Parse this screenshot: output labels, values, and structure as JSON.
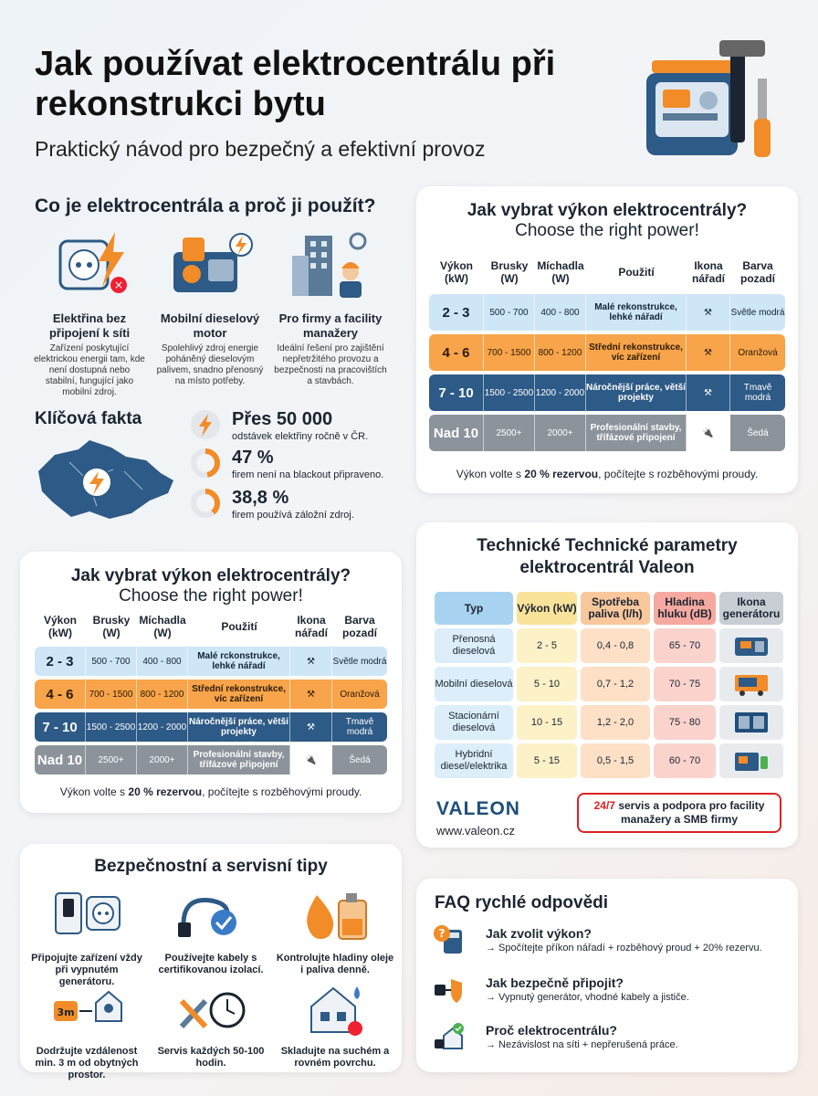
{
  "header": {
    "title": "Jak používat elektrocentrálu při rekonstrukci bytu",
    "subtitle": "Praktický návod pro bezpečný a efektivní provoz"
  },
  "intro": {
    "title": "Co je elektrocentrála a proč ji použít?",
    "features": [
      {
        "title": "Elektřina bez připojení k síti",
        "desc": "Zařízení poskytující elektrickou energii tam, kde není dostupná nebo stabilní, fungující jako mobilní zdroj.",
        "icon": "socket-lightning-icon"
      },
      {
        "title": "Mobilní dieselový motor",
        "desc": "Spolehlivý zdroj energie poháněný dieselovým palivem, snadno přenosný na místo potřeby.",
        "icon": "diesel-engine-icon"
      },
      {
        "title": "Pro firmy a facility manažery",
        "desc": "Ideální řešení pro zajištění nepřetržitého provozu a bezpečnosti na pracovištích a stavbách.",
        "icon": "building-worker-icon"
      }
    ]
  },
  "facts": {
    "title": "Klíčová fakta",
    "items": [
      {
        "big": "Přes 50 000",
        "small": "odstávek elektřiny ročně v ČR.",
        "percent": null
      },
      {
        "big": "47 %",
        "small": "firem není na blackout připraveno.",
        "percent": 47
      },
      {
        "big": "38,8 %",
        "small": "firem používá záložní zdroj.",
        "percent": 38.8
      }
    ]
  },
  "power_table": {
    "title": "Jak vybrat výkon elektrocentrály?",
    "subtitle": "Choose the right power!",
    "headers": [
      "Výkon (kW)",
      "Brusky (W)",
      "Míchadla (W)",
      "Použití",
      "Ikona nářadí",
      "Barva pozadí"
    ],
    "rows": [
      {
        "range": "2 - 3",
        "brusky": "500 - 700",
        "michadla": "400 - 800",
        "use": "Malé rekonstrukce, lehké nářadí",
        "color": "Světle modrá"
      },
      {
        "range": "4 - 6",
        "brusky": "700 - 1500",
        "michadla": "800 - 1200",
        "use": "Střední rekonstrukce, víc zařízení",
        "color": "Oranžová"
      },
      {
        "range": "7 - 10",
        "brusky": "1500 - 2500",
        "michadla": "1200 - 2000",
        "use": "Náročnější práce, větší projekty",
        "color": "Tmavě modrá"
      },
      {
        "range": "Nad 10",
        "brusky": "2500+",
        "michadla": "2000+",
        "use": "Profesionální stavby, třífázové připojení",
        "color": "Šedá"
      }
    ],
    "note_prefix": "Výkon volte s ",
    "note_bold": "20 % rezervou",
    "note_suffix": ", počítejte s rozběhovými proudy."
  },
  "power_table_2": {
    "title": "Jak vybrat výkon elektrocentrály?",
    "subtitle": "Choose the right power!",
    "rows_use": [
      "Malé rckonstrukce, lehké nářadí",
      "Střední rekonstrukce, víc zařízení",
      "Náročnější práce, větší projekty",
      "Profesionální stavby, třífázové připojení"
    ]
  },
  "tech": {
    "title": "Technické Technické parametry elektrocentrál Valeon",
    "headers": [
      "Typ",
      "Výkon (kW)",
      "Spotřeba paliva (l/h)",
      "Hladina hluku (dB)",
      "Ikona generátoru"
    ],
    "rows": [
      {
        "type": "Přenosná dieselová",
        "power": "2 - 5",
        "fuel": "0,4 - 0,8",
        "noise": "65 - 70"
      },
      {
        "type": "Mobilní dieselová",
        "power": "5 - 10",
        "fuel": "0,7 - 1,2",
        "noise": "70 - 75"
      },
      {
        "type": "Stacionární dieselová",
        "power": "10 - 15",
        "fuel": "1,2 - 2,0",
        "noise": "75 - 80"
      },
      {
        "type": "Hybridní diesel/elektrika",
        "power": "5 - 15",
        "fuel": "0,5 - 1,5",
        "noise": "60 - 70"
      }
    ],
    "brand": "VALEON",
    "url": "www.valeon.cz",
    "service_bold": "24/7",
    "service_text": " servis a podpora pro facility manažery a SMB firmy"
  },
  "safety": {
    "title": "Bezpečnostní a servisní tipy",
    "tips": [
      {
        "text": "Připojujte zařízení vždy při vypnutém generátoru.",
        "icon": "switch-socket-icon"
      },
      {
        "text": "Používejte kabely s certifikovanou izolací.",
        "icon": "cable-check-icon"
      },
      {
        "text": "Kontrolujte hladiny oleje i paliva denně.",
        "icon": "oil-fuel-icon"
      },
      {
        "text": "Dodržujte vzdálenost min. 3 m od obytných prostor.",
        "icon": "distance-house-icon",
        "badge": "3m"
      },
      {
        "text": "Servis každých 50-100 hodin.",
        "icon": "tools-clock-icon"
      },
      {
        "text": "Skladujte na suchém a rovném povrchu.",
        "icon": "house-rain-icon"
      }
    ]
  },
  "faq": {
    "title": "FAQ rychlé odpovědi",
    "items": [
      {
        "q": "Jak zvolit výkon?",
        "a": "→ Spočítejte příkon nářadí + rozběhový proud + 20% rezervu.",
        "icon": "calculator-question-icon"
      },
      {
        "q": "Jak bezpečně připojit?",
        "a": "→ Vypnutý generátor, vhodné kabely a jističe.",
        "icon": "plug-shield-icon"
      },
      {
        "q": "Proč elektrocentrálu?",
        "a": "→ Nezávislost na síti + nepřerušená práce.",
        "icon": "plug-house-icon"
      }
    ]
  },
  "colors": {
    "blue_row": "#cfe6f7",
    "orange_row": "#f7a44a",
    "navy_row": "#2d5a86",
    "gray_row": "#8c939b",
    "accent_orange": "#f28c28",
    "brand_navy": "#1f4f7a",
    "alert_red": "#d22"
  }
}
